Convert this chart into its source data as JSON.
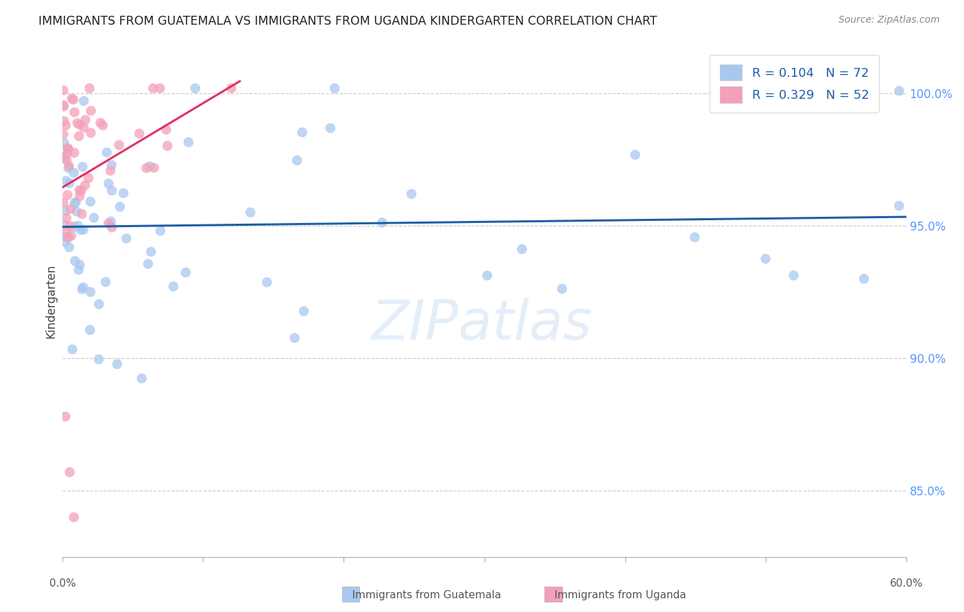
{
  "title": "IMMIGRANTS FROM GUATEMALA VS IMMIGRANTS FROM UGANDA KINDERGARTEN CORRELATION CHART",
  "source": "Source: ZipAtlas.com",
  "ylabel": "Kindergarten",
  "ytick_values": [
    0.85,
    0.9,
    0.95,
    1.0
  ],
  "xlim": [
    0.0,
    0.6
  ],
  "ylim": [
    0.825,
    1.018
  ],
  "legend_r1": "R = 0.104",
  "legend_n1": "N = 72",
  "legend_r2": "R = 0.329",
  "legend_n2": "N = 52",
  "color_blue": "#a8c8f0",
  "color_pink": "#f4a0b8",
  "color_blue_line": "#1a5fa8",
  "color_pink_line": "#e03060",
  "color_right_axis": "#5599ff",
  "color_grid": "#cccccc",
  "background": "#ffffff",
  "seed_guat": 77,
  "seed_uganda": 55
}
